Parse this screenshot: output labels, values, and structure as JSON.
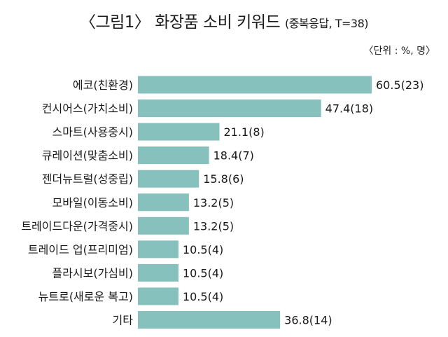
{
  "title": {
    "main": "〈그림1〉 화장품 소비 키워드",
    "sub": "(중복응답, T=38)"
  },
  "unit_note": "〈단위 : %, 명〉",
  "colors": {
    "bar": "#86c1bd"
  },
  "chart_data": {
    "type": "bar",
    "orientation": "horizontal",
    "categories": [
      "에코(친환경)",
      "컨시어스(가치소비)",
      "스마트(사용중시)",
      "큐레이션(맞춤소비)",
      "젠더뉴트럴(성중립)",
      "모바일(이동소비)",
      "트레이드다운(가격중시)",
      "트레이드 업(프리미엄)",
      "플라시보(가심비)",
      "뉴트로(새로운 복고)",
      "기타"
    ],
    "values": [
      60.5,
      47.4,
      21.1,
      18.4,
      15.8,
      13.2,
      13.2,
      10.5,
      10.5,
      10.5,
      36.8
    ],
    "counts": [
      23,
      18,
      8,
      7,
      6,
      5,
      5,
      4,
      4,
      4,
      14
    ],
    "value_labels": [
      "60.5(23)",
      "47.4(18)",
      "21.1(8)",
      "18.4(7)",
      "15.8(6)",
      "13.2(5)",
      "13.2(5)",
      "10.5(4)",
      "10.5(4)",
      "10.5(4)",
      "36.8(14)"
    ],
    "xlim": [
      0,
      60.5
    ],
    "grid": false,
    "legend": "none"
  }
}
